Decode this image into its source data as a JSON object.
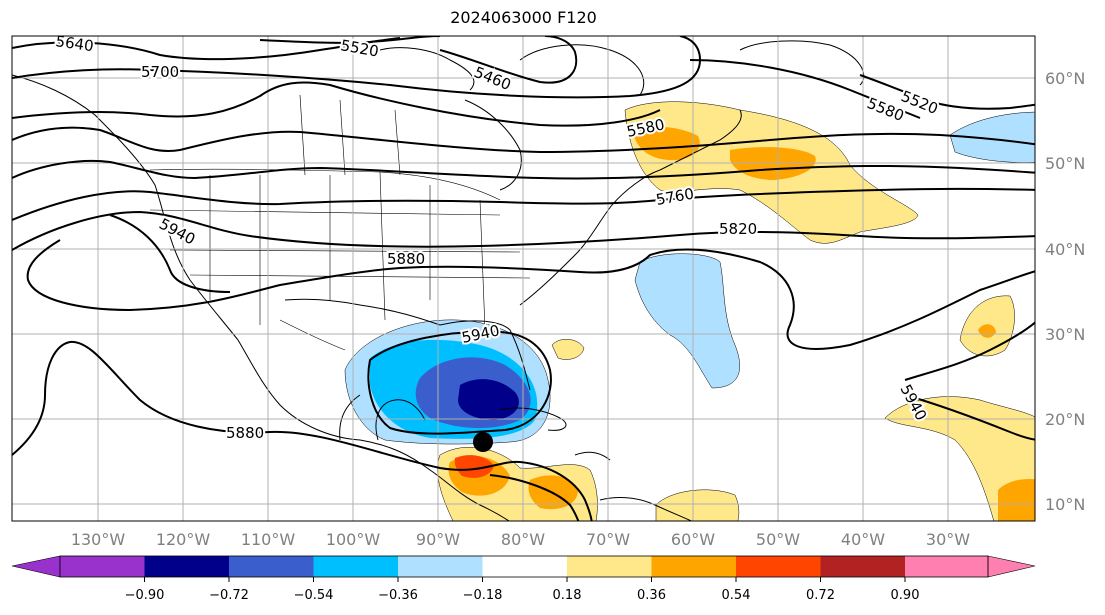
{
  "title": "2024063000 F120",
  "lat_labels": [
    "60°N",
    "50°N",
    "40°N",
    "30°N",
    "20°N",
    "10°N"
  ],
  "lon_labels": [
    "130°W",
    "120°W",
    "110°W",
    "100°W",
    "90°W",
    "80°W",
    "70°W",
    "60°W",
    "50°W",
    "40°W",
    "30°W"
  ],
  "contour_labels": [
    "5640",
    "5520",
    "5460",
    "5700",
    "5580",
    "5520",
    "5580",
    "5760",
    "5820",
    "5940",
    "5880",
    "5940",
    "5940",
    "5880"
  ],
  "colorbar": {
    "ticks": [
      "−0.90",
      "−0.72",
      "−0.54",
      "−0.36",
      "−0.18",
      "0.18",
      "0.36",
      "0.54",
      "0.72",
      "0.90"
    ],
    "colors": [
      "#9932cc",
      "#00008b",
      "#3a5fcd",
      "#00bfff",
      "#b0e0ff",
      "#ffffff",
      "#ffe88a",
      "#ffa500",
      "#ff4500",
      "#b22222",
      "#ff80b0"
    ]
  },
  "marker": "storm-center"
}
